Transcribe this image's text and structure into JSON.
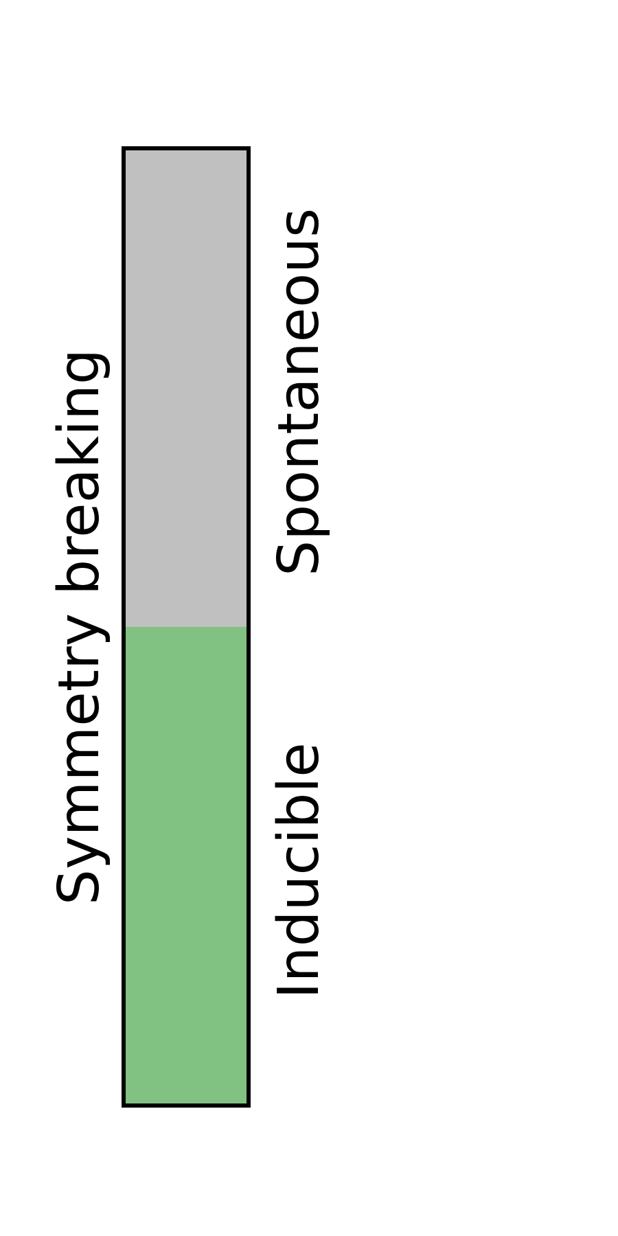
{
  "title": "Symmetry breaking",
  "segments": [
    {
      "label": "Spontaneous",
      "color": "#c0c0c0"
    },
    {
      "label": "Inducible",
      "color": "#81c181"
    }
  ],
  "outline_color": "#000000"
}
